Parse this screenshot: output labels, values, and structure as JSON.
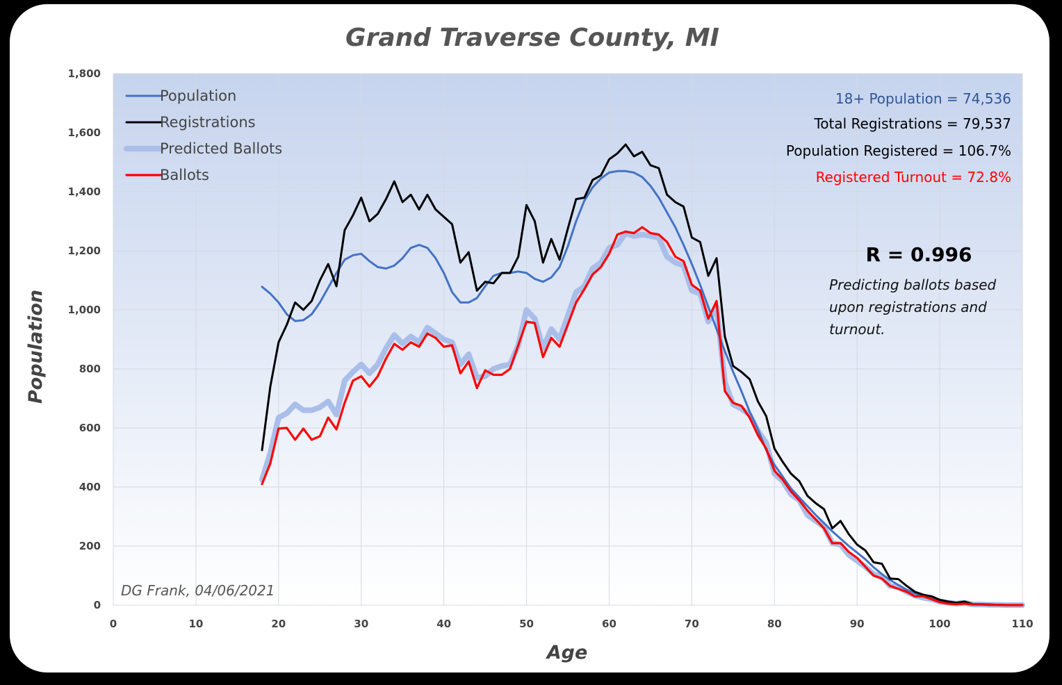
{
  "chart_data": {
    "type": "line",
    "title": "Grand Traverse County, MI",
    "xlabel": "Age",
    "ylabel": "Population",
    "xlim": [
      0,
      110
    ],
    "ylim": [
      0,
      1800
    ],
    "x_ticks": [
      "0",
      "10",
      "20",
      "30",
      "40",
      "50",
      "60",
      "70",
      "80",
      "90",
      "100",
      "110"
    ],
    "y_ticks": [
      "0",
      "200",
      "400",
      "600",
      "800",
      "1,000",
      "1,200",
      "1,400",
      "1,600",
      "1,800"
    ],
    "grid": true,
    "legend_position": "top-left",
    "x": [
      18,
      19,
      20,
      21,
      22,
      23,
      24,
      25,
      26,
      27,
      28,
      29,
      30,
      31,
      32,
      33,
      34,
      35,
      36,
      37,
      38,
      39,
      40,
      41,
      42,
      43,
      44,
      45,
      46,
      47,
      48,
      49,
      50,
      51,
      52,
      53,
      54,
      55,
      56,
      57,
      58,
      59,
      60,
      61,
      62,
      63,
      64,
      65,
      66,
      67,
      68,
      69,
      70,
      71,
      72,
      73,
      74,
      75,
      76,
      77,
      78,
      79,
      80,
      81,
      82,
      83,
      84,
      85,
      86,
      87,
      88,
      89,
      90,
      91,
      92,
      93,
      94,
      95,
      96,
      97,
      98,
      99,
      100,
      101,
      102,
      103,
      104,
      105,
      106,
      107,
      108,
      109,
      110
    ],
    "series": [
      {
        "name": "Population",
        "color": "#4472C4",
        "values": [
          1078,
          1055,
          1025,
          985,
          962,
          965,
          985,
          1025,
          1075,
          1125,
          1170,
          1185,
          1190,
          1165,
          1145,
          1140,
          1150,
          1175,
          1210,
          1220,
          1210,
          1175,
          1125,
          1060,
          1025,
          1025,
          1040,
          1080,
          1115,
          1125,
          1125,
          1130,
          1125,
          1105,
          1095,
          1110,
          1145,
          1215,
          1300,
          1370,
          1415,
          1445,
          1465,
          1470,
          1470,
          1465,
          1450,
          1420,
          1380,
          1330,
          1280,
          1220,
          1155,
          1085,
          1010,
          935,
          860,
          790,
          725,
          655,
          595,
          525,
          475,
          435,
          395,
          365,
          335,
          305,
          278,
          250,
          225,
          200,
          178,
          155,
          128,
          105,
          85,
          68,
          52,
          40,
          30,
          22,
          15,
          10,
          7,
          5,
          3,
          2,
          1,
          1,
          0,
          0,
          0
        ]
      },
      {
        "name": "Registrations",
        "color": "#000000",
        "values": [
          525,
          740,
          890,
          950,
          1025,
          1000,
          1030,
          1100,
          1155,
          1080,
          1270,
          1320,
          1380,
          1300,
          1325,
          1375,
          1435,
          1365,
          1390,
          1340,
          1390,
          1340,
          1315,
          1290,
          1160,
          1195,
          1065,
          1095,
          1090,
          1125,
          1125,
          1180,
          1355,
          1300,
          1160,
          1240,
          1170,
          1275,
          1375,
          1380,
          1440,
          1455,
          1510,
          1530,
          1560,
          1520,
          1535,
          1490,
          1480,
          1390,
          1365,
          1350,
          1245,
          1230,
          1115,
          1175,
          910,
          810,
          790,
          765,
          690,
          640,
          530,
          485,
          445,
          420,
          370,
          345,
          325,
          260,
          285,
          240,
          205,
          185,
          145,
          140,
          90,
          88,
          65,
          45,
          35,
          30,
          18,
          12,
          8,
          12,
          3,
          3,
          2,
          1,
          0,
          0,
          0
        ]
      },
      {
        "name": "Predicted Ballots",
        "color": "#A9BEE8",
        "values": [
          425,
          515,
          635,
          650,
          680,
          660,
          660,
          670,
          690,
          645,
          760,
          790,
          815,
          785,
          815,
          870,
          915,
          885,
          910,
          890,
          940,
          920,
          900,
          890,
          815,
          850,
          770,
          775,
          800,
          810,
          815,
          880,
          1000,
          970,
          870,
          935,
          900,
          980,
          1060,
          1080,
          1140,
          1160,
          1210,
          1220,
          1260,
          1250,
          1255,
          1250,
          1245,
          1180,
          1160,
          1150,
          1065,
          1055,
          960,
          1010,
          755,
          680,
          665,
          645,
          590,
          550,
          445,
          420,
          375,
          355,
          305,
          285,
          265,
          210,
          205,
          170,
          150,
          130,
          105,
          95,
          65,
          62,
          45,
          32,
          25,
          20,
          12,
          8,
          5,
          8,
          2,
          2,
          1,
          1,
          0,
          0,
          0
        ]
      },
      {
        "name": "Ballots",
        "color": "#FF0000",
        "values": [
          410,
          480,
          598,
          600,
          560,
          598,
          560,
          572,
          635,
          595,
          685,
          760,
          775,
          740,
          775,
          835,
          885,
          865,
          890,
          875,
          920,
          905,
          875,
          880,
          785,
          825,
          735,
          795,
          780,
          780,
          800,
          880,
          960,
          955,
          840,
          905,
          875,
          950,
          1025,
          1070,
          1120,
          1145,
          1190,
          1255,
          1265,
          1260,
          1280,
          1260,
          1255,
          1230,
          1180,
          1165,
          1085,
          1065,
          970,
          1030,
          725,
          685,
          675,
          635,
          575,
          530,
          455,
          425,
          385,
          355,
          320,
          290,
          260,
          210,
          210,
          180,
          160,
          130,
          100,
          90,
          65,
          55,
          45,
          30,
          30,
          20,
          10,
          5,
          3,
          5,
          2,
          2,
          1,
          1,
          0,
          0,
          0
        ]
      }
    ]
  },
  "annotations": {
    "stat_population": "18+ Population = 74,536",
    "stat_registrations": "Total Registrations = 79,537",
    "stat_registered": "Population Registered = 106.7%",
    "stat_turnout": "Registered Turnout = 72.8%",
    "r_value": "R = 0.996",
    "note_line1": "Predicting ballots based",
    "note_line2": "upon registrations and",
    "note_line3": "turnout.",
    "credit": "DG Frank, 04/06/2021"
  },
  "colors": {
    "plot_top": "#C6D4EE",
    "plot_bottom": "#FFFFFF",
    "grid": "#D4D8DE",
    "stat_population": "#2F5597",
    "stat_turnout": "#FF0000"
  }
}
